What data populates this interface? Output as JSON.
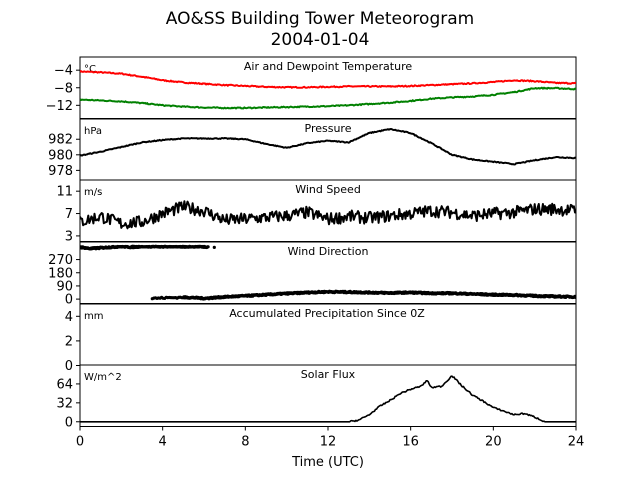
{
  "figure": {
    "title_line1": "AO&SS Building Tower Meteorogram",
    "title_line2": "2004-01-04",
    "xlabel": "Time (UTC)",
    "xticks": [
      "0",
      "4",
      "8",
      "12",
      "16",
      "20",
      "24"
    ]
  },
  "colors": {
    "red": "#ff0000",
    "green": "#008000",
    "black": "#000000"
  },
  "chart_data": [
    {
      "type": "line",
      "title": "Air and Dewpoint Temperature",
      "ylabel": "°C",
      "xlim": [
        0,
        24
      ],
      "ylim": [
        -15,
        -1
      ],
      "yticks": [
        -4,
        -8,
        -12
      ],
      "ytick_labels": [
        "−4",
        "−8",
        "−12"
      ],
      "series": [
        {
          "color": "#ff0000",
          "x": [
            0,
            1,
            2,
            3,
            4,
            5,
            6,
            7,
            8,
            9,
            10,
            11,
            12,
            13,
            14,
            15,
            16,
            17,
            18,
            19,
            20,
            21,
            22,
            23,
            24
          ],
          "y": [
            -4.3,
            -4.5,
            -4.8,
            -5.5,
            -6.3,
            -6.8,
            -7.1,
            -7.4,
            -7.6,
            -7.8,
            -7.9,
            -7.9,
            -7.8,
            -7.7,
            -7.7,
            -7.7,
            -7.6,
            -7.4,
            -7.2,
            -7.0,
            -6.7,
            -6.3,
            -6.5,
            -6.9,
            -7.0
          ]
        },
        {
          "color": "#008000",
          "x": [
            0,
            1,
            2,
            3,
            4,
            5,
            6,
            7,
            8,
            9,
            10,
            11,
            12,
            13,
            14,
            15,
            16,
            17,
            18,
            19,
            20,
            21,
            22,
            23,
            24
          ],
          "y": [
            -10.7,
            -10.9,
            -11.1,
            -11.5,
            -12.0,
            -12.3,
            -12.5,
            -12.6,
            -12.6,
            -12.5,
            -12.4,
            -12.3,
            -12.2,
            -12.0,
            -11.7,
            -11.4,
            -11.0,
            -10.5,
            -10.2,
            -10.0,
            -9.6,
            -9.0,
            -8.1,
            -8.1,
            -8.3
          ]
        }
      ]
    },
    {
      "type": "line",
      "title": "Pressure",
      "ylabel": "hPa",
      "xlim": [
        0,
        24
      ],
      "ylim": [
        976.7,
        984.6
      ],
      "yticks": [
        982,
        980,
        978
      ],
      "ytick_labels": [
        "982",
        "980",
        "978"
      ],
      "series": [
        {
          "color": "#000000",
          "x": [
            0,
            1,
            2,
            3,
            4,
            5,
            6,
            7,
            8,
            9,
            10,
            11,
            12,
            13,
            14,
            15,
            16,
            17,
            18,
            19,
            20,
            21,
            22,
            23,
            24
          ],
          "y": [
            979.9,
            980.4,
            981.0,
            981.6,
            981.9,
            982.1,
            982.1,
            982.1,
            982.0,
            981.4,
            980.9,
            981.5,
            981.8,
            981.6,
            982.8,
            983.3,
            982.8,
            981.5,
            980.0,
            979.4,
            979.1,
            978.8,
            979.3,
            979.7,
            979.6
          ]
        }
      ]
    },
    {
      "type": "line",
      "title": "Wind Speed",
      "ylabel": "m/s",
      "xlim": [
        0,
        24
      ],
      "ylim": [
        2,
        13
      ],
      "yticks": [
        11,
        7,
        3
      ],
      "ytick_labels": [
        "11",
        "7",
        "3"
      ],
      "series": [
        {
          "color": "#000000",
          "x": [
            0,
            1,
            2,
            3,
            4,
            5,
            6,
            7,
            8,
            9,
            10,
            11,
            12,
            13,
            14,
            15,
            16,
            17,
            18,
            19,
            20,
            21,
            22,
            23,
            24
          ],
          "y": [
            5.5,
            6.5,
            5.2,
            5.5,
            7.0,
            8.2,
            7.5,
            5.8,
            6.0,
            6.3,
            6.6,
            7.2,
            6.0,
            6.5,
            6.2,
            6.6,
            7.0,
            7.5,
            7.2,
            6.6,
            7.0,
            7.2,
            7.8,
            7.8,
            7.5
          ]
        }
      ]
    },
    {
      "type": "scatter",
      "title": "Wind Direction",
      "ylabel": "",
      "xlim": [
        0,
        24
      ],
      "ylim": [
        -30,
        390
      ],
      "yticks": [
        270,
        180,
        90,
        0
      ],
      "ytick_labels": [
        "270",
        "180",
        "90",
        "0"
      ],
      "series": [
        {
          "color": "#000000",
          "x": [
            0,
            0.5,
            1,
            1.5,
            2,
            2.5,
            3,
            3.5,
            4,
            4.5,
            5,
            5.5,
            6,
            6.5
          ],
          "y": [
            355,
            345,
            350,
            355,
            360,
            355,
            360,
            360,
            358,
            360,
            358,
            360,
            358,
            355
          ]
        },
        {
          "color": "#000000",
          "x": [
            3.5,
            4,
            4.5,
            5,
            5.5,
            6,
            7,
            8,
            9,
            10,
            11,
            12,
            13,
            14,
            15,
            16,
            17,
            18,
            19,
            20,
            21,
            22,
            23,
            24
          ],
          "y": [
            5,
            8,
            10,
            12,
            10,
            5,
            15,
            22,
            30,
            38,
            45,
            50,
            48,
            45,
            42,
            45,
            40,
            40,
            35,
            30,
            28,
            22,
            18,
            15
          ]
        }
      ]
    },
    {
      "type": "line",
      "title": "Accumulated Precipitation Since 0Z",
      "ylabel": "mm",
      "xlim": [
        0,
        24
      ],
      "ylim": [
        0,
        5
      ],
      "yticks": [
        4,
        2,
        0
      ],
      "ytick_labels": [
        "4",
        "2",
        "0"
      ],
      "series": [
        {
          "color": "#000000",
          "x": [
            0,
            24
          ],
          "y": [
            0,
            0
          ]
        }
      ]
    },
    {
      "type": "line",
      "title": "Solar Flux",
      "ylabel": "W/m^2",
      "xlim": [
        0,
        24
      ],
      "ylim": [
        -8,
        96
      ],
      "yticks": [
        64,
        32,
        0
      ],
      "ytick_labels": [
        "64",
        "32",
        "0"
      ],
      "series": [
        {
          "color": "#000000",
          "x": [
            0,
            13,
            13.5,
            14,
            14.5,
            15,
            15.5,
            16,
            16.5,
            16.8,
            17,
            17.5,
            18,
            18.5,
            19,
            19.5,
            20,
            20.5,
            21,
            21.5,
            22,
            22.5,
            23,
            24
          ],
          "y": [
            0,
            0,
            3,
            12,
            26,
            36,
            48,
            55,
            60,
            70,
            58,
            60,
            78,
            60,
            45,
            35,
            24,
            18,
            12,
            14,
            8,
            0,
            0,
            0
          ]
        }
      ]
    }
  ]
}
